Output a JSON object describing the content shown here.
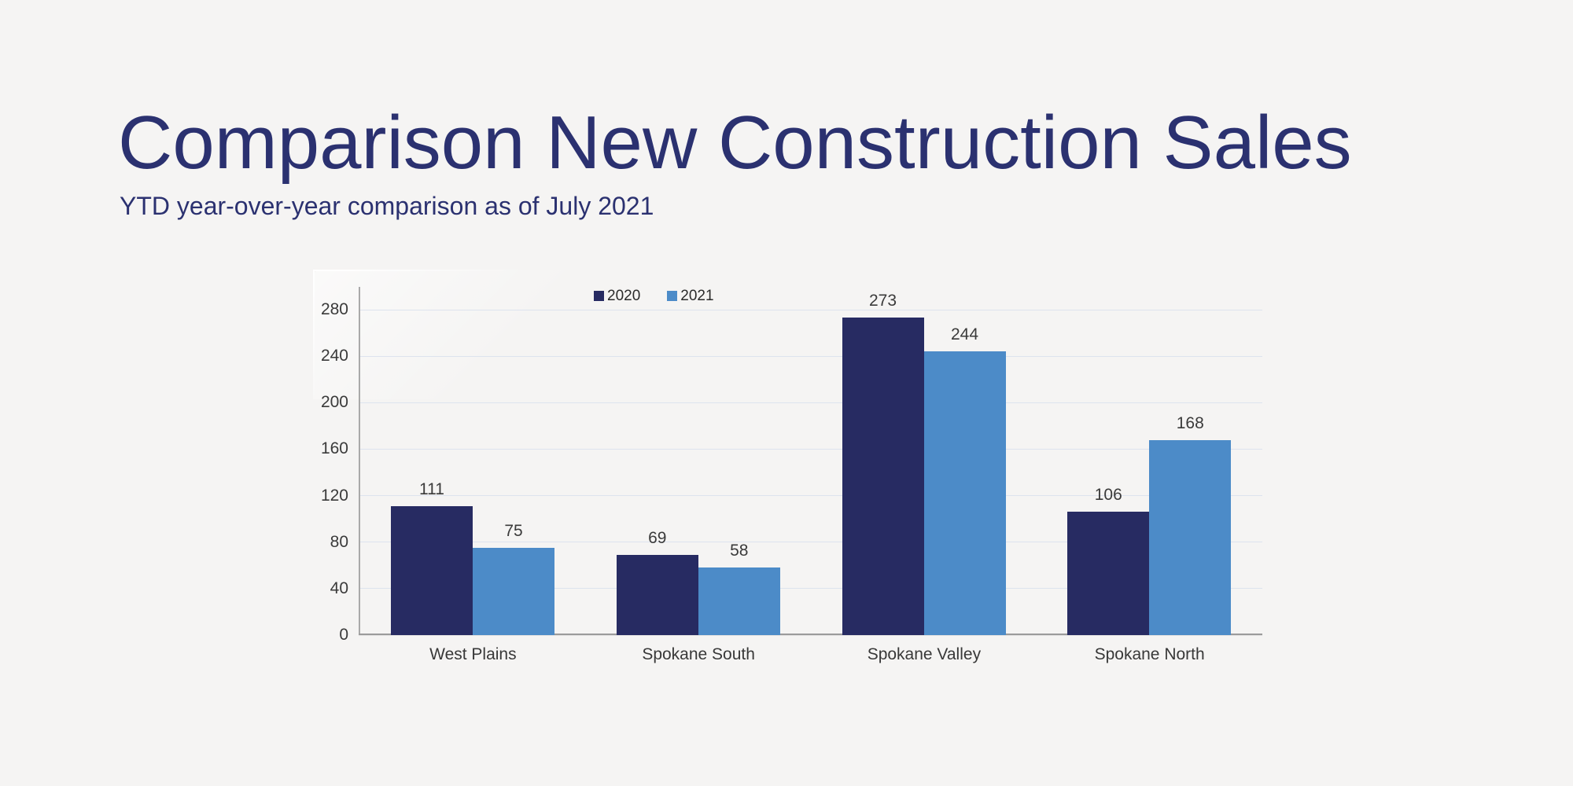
{
  "slide": {
    "title": "Comparison New Construction Sales",
    "subtitle": "YTD year-over-year comparison as of July 2021"
  },
  "colors": {
    "background": "#f5f4f3",
    "title_text": "#2b3170",
    "series_2020": "#272b62",
    "series_2021": "#4c8bc8",
    "grid_line": "#dde3ee",
    "axis_line": "#a9a9a9",
    "label_text": "#3a3a3a"
  },
  "chart_data": {
    "type": "bar",
    "title": "Comparison New Construction Sales",
    "subtitle": "YTD year-over-year comparison as of July 2021",
    "categories": [
      "West Plains",
      "Spokane South",
      "Spokane Valley",
      "Spokane North"
    ],
    "series": [
      {
        "name": "2020",
        "color": "#272b62",
        "values": [
          111,
          69,
          273,
          106
        ]
      },
      {
        "name": "2021",
        "color": "#4c8bc8",
        "values": [
          75,
          58,
          244,
          168
        ]
      }
    ],
    "xlabel": "",
    "ylabel": "",
    "ylim": [
      0,
      280
    ],
    "yticks": [
      0,
      40,
      80,
      120,
      160,
      200,
      240,
      280
    ],
    "grid": "horizontal",
    "legend_position": "top-center",
    "value_labels": true
  }
}
